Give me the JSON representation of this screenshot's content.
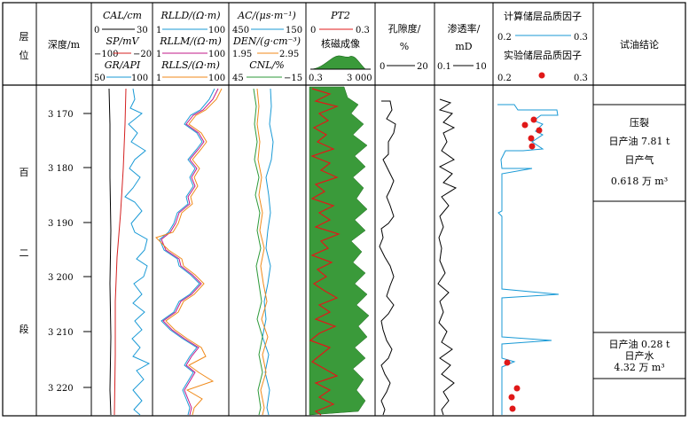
{
  "header": {
    "layer_label": [
      "层",
      "位"
    ],
    "depth_label": "深度/m",
    "track1": {
      "cal_label": "CAL/cm",
      "cal_min": "0",
      "cal_max": "30",
      "sp_label": "SP/mV",
      "sp_min": "−100",
      "sp_max": "−20",
      "gr_label": "GR/API",
      "gr_min": "50",
      "gr_max": "100"
    },
    "track2": {
      "rlld_label": "RLLD/(Ω·m)",
      "rlld_min": "1",
      "rlld_max": "100",
      "rllm_label": "RLLM/(Ω·m)",
      "rllm_min": "1",
      "rllm_max": "100",
      "rlls_label": "RLLS/(Ω·m)",
      "rlls_min": "1",
      "rlls_max": "100"
    },
    "track3": {
      "ac_label": "AC/(μs·m⁻¹)",
      "ac_min": "450",
      "ac_max": "150",
      "den_label": "DEN/(g·cm⁻³)",
      "den_min": "1.95",
      "den_max": "2.95",
      "cnl_label": "CNL/%",
      "cnl_min": "45",
      "cnl_max": "−15"
    },
    "track4": {
      "pt_label": "PT2",
      "pt_min": "0",
      "pt_max": "0.3",
      "nmr_label": "核磁成像",
      "nmr_min": "0.3",
      "nmr_max": "3 000"
    },
    "porosity": {
      "label1": "孔隙度/",
      "label2": "%",
      "min": "0",
      "max": "20"
    },
    "permeability": {
      "label1": "渗透率/",
      "label2": "mD",
      "min": "0.1",
      "max": "10"
    },
    "quality": {
      "calc_label": "计算储层品质因子",
      "calc_min": "0.2",
      "calc_max": "0.3",
      "exp_label": "实验储层品质因子",
      "exp_min": "0.2",
      "exp_max": "0.3"
    },
    "conclusion_label": "试油结论"
  },
  "formation": [
    "百",
    "二",
    "段"
  ],
  "depth_ticks": [
    "3 170",
    "3 180",
    "3 190",
    "3 200",
    "3 210",
    "3 220"
  ],
  "conclusions": {
    "top": [
      "压裂",
      "日产油 7.81 t",
      "日产气",
      "0.618 万 m³"
    ],
    "bottom": [
      "日产油 0.28 t",
      "日产水",
      "4.32 万 m³"
    ]
  },
  "colors": {
    "cal": "#000000",
    "sp": "#d42020",
    "gr": "#1a9ad6",
    "rlld": "#1a9ad6",
    "rllm": "#c2188a",
    "rlls": "#f08a1a",
    "ac": "#1a9ad6",
    "den": "#f08a1a",
    "cnl": "#2e9a3a",
    "pt2": "#e01818",
    "nmr_fill": "#3a9a3a",
    "quality_line": "#1a9ad6",
    "quality_dot": "#e01818"
  }
}
